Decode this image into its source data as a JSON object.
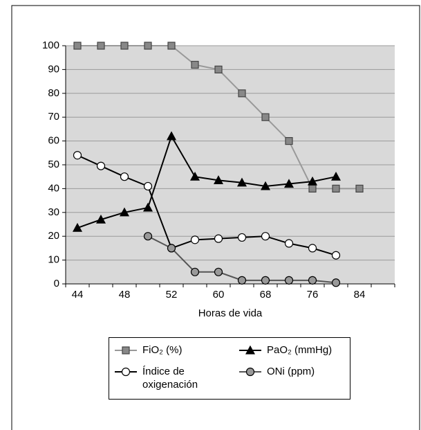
{
  "chart_data": {
    "type": "line",
    "x_label": "Horas de vida",
    "categories": [
      "44",
      null,
      "48",
      null,
      "52",
      null,
      "60",
      null,
      "68",
      null,
      "76",
      null,
      "84",
      null
    ],
    "series": [
      {
        "name": "FiO₂ (%)",
        "color": "#999999",
        "marker": "square",
        "marker_color": "#888888",
        "values": [
          100,
          100,
          100,
          100,
          100,
          92,
          90,
          80,
          70,
          60,
          40,
          40,
          40,
          null
        ]
      },
      {
        "name": "PaO₂ (mmHg)",
        "color": "#000000",
        "marker": "triangle",
        "marker_color": "#000000",
        "values": [
          23.5,
          27,
          30,
          32,
          62,
          45,
          43.5,
          42.5,
          41,
          42,
          43,
          45,
          null,
          null
        ]
      },
      {
        "name": "Índice de oxigenación",
        "color": "#000000",
        "marker": "circle",
        "marker_color": "#ffffff",
        "values": [
          54,
          49.5,
          45,
          41,
          15,
          18.5,
          19,
          19.5,
          20,
          17,
          15,
          12,
          null,
          null
        ]
      },
      {
        "name": "ONi (ppm)",
        "color": "#555555",
        "marker": "circle",
        "marker_color": "#999999",
        "values": [
          null,
          null,
          null,
          20,
          15,
          5,
          5,
          1.5,
          1.5,
          1.5,
          1.5,
          0.5,
          null,
          null
        ]
      }
    ],
    "ylim": [
      0,
      100
    ],
    "yticks": [
      0,
      10,
      20,
      30,
      40,
      50,
      60,
      70,
      80,
      90,
      100
    ],
    "grid": true,
    "legend": "bottom"
  }
}
